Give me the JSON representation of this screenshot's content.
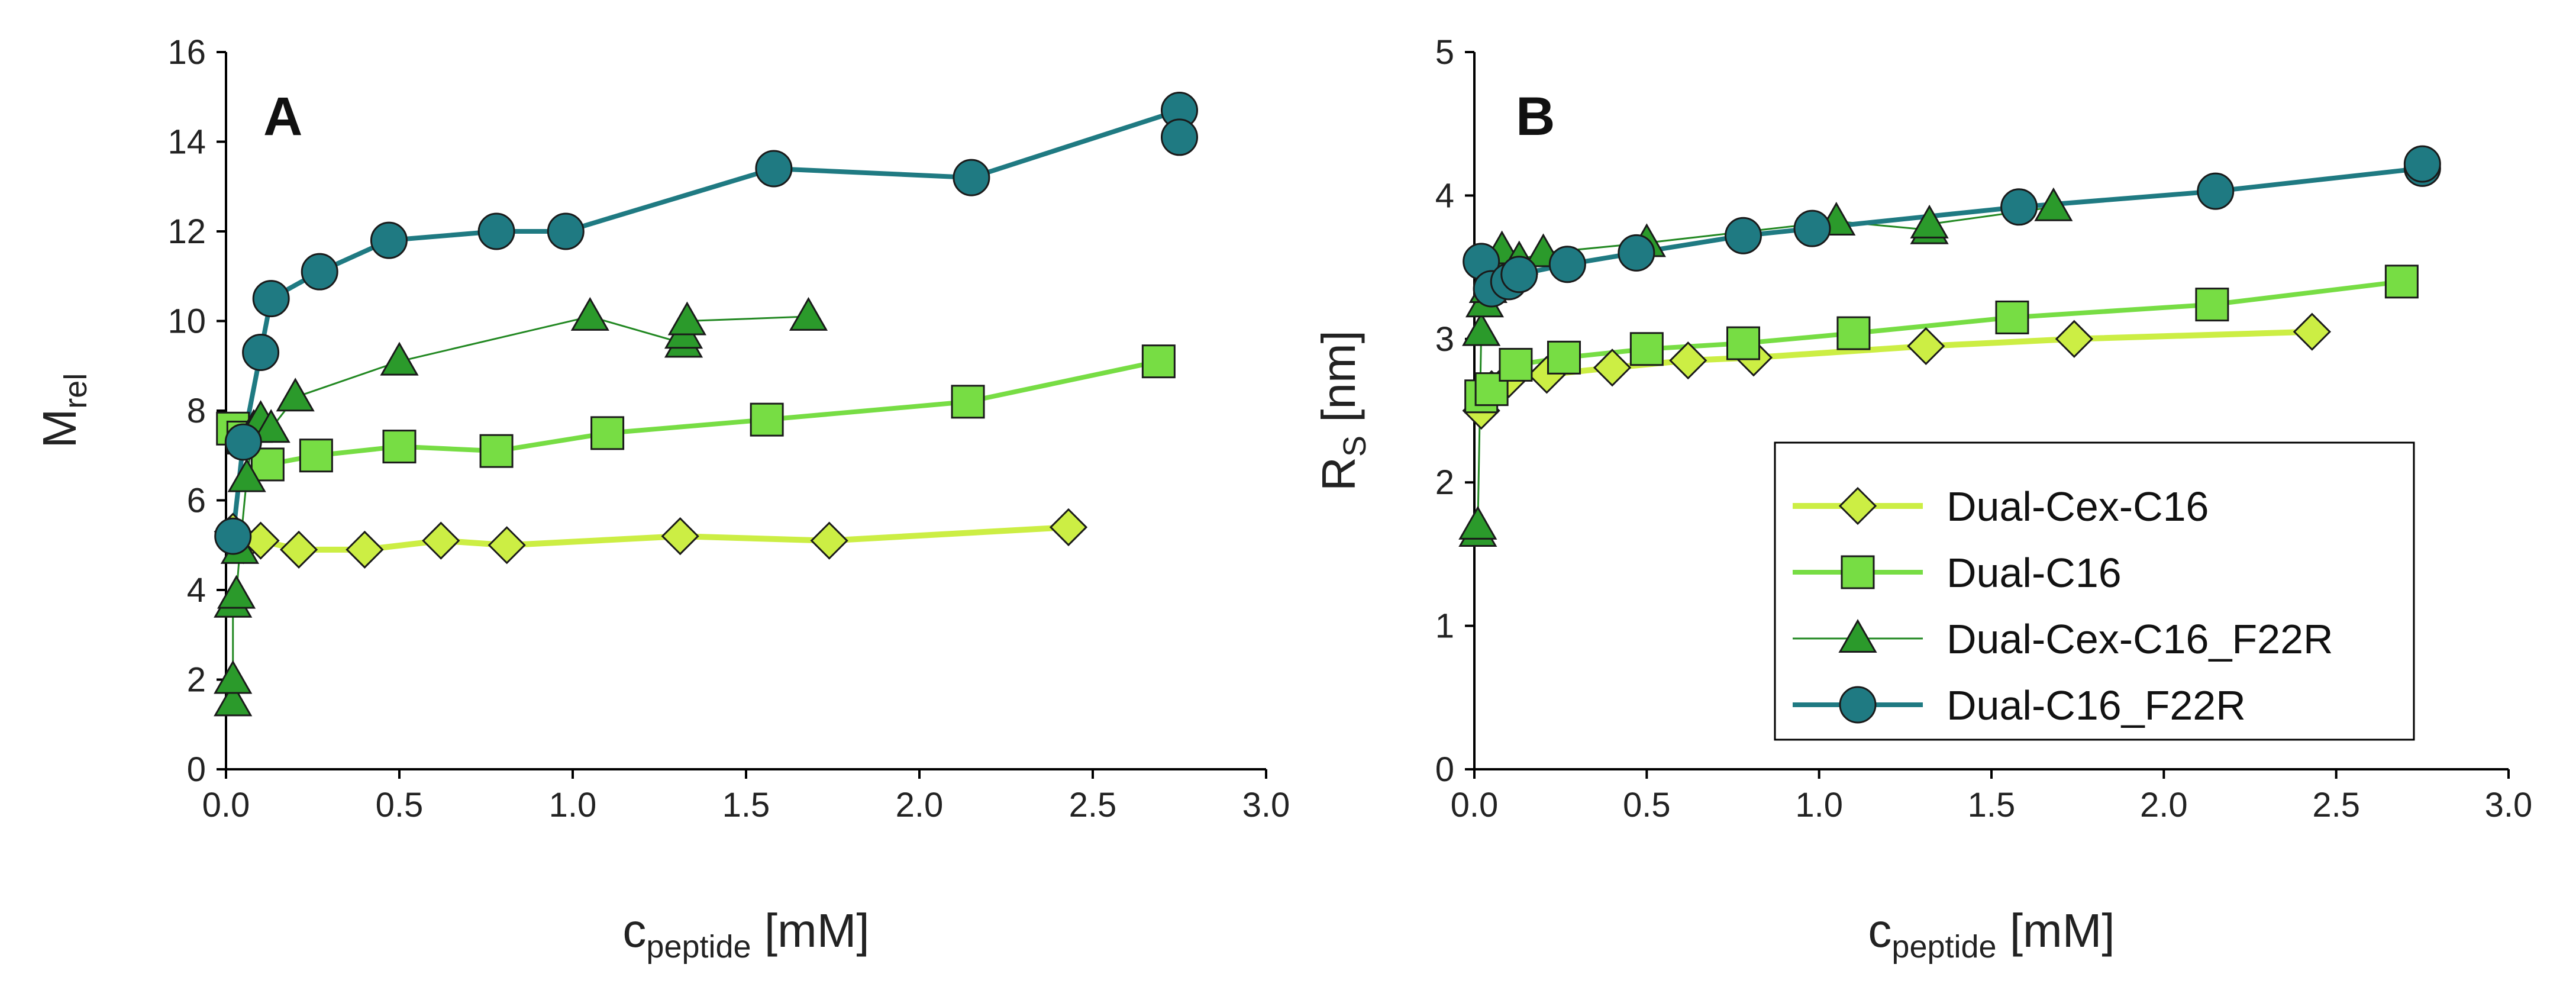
{
  "legend": {
    "items": [
      {
        "label": "Dual-Cex-C16",
        "series_index": 0
      },
      {
        "label": "Dual-C16",
        "series_index": 1
      },
      {
        "label": "Dual-Cex-C16_F22R",
        "series_index": 2
      },
      {
        "label": "Dual-C16_F22R",
        "series_index": 3
      }
    ],
    "placement": "lower-right of panel B"
  },
  "style": {
    "series": [
      {
        "name": "Dual-Cex-C16",
        "marker": "diamond",
        "line_color": "#ccee44",
        "fill": "#ccee44"
      },
      {
        "name": "Dual-C16",
        "marker": "square",
        "line_color": "#77dd44",
        "fill": "#77dd44"
      },
      {
        "name": "Dual-Cex-C16_F22R",
        "marker": "triangle",
        "line_color": "#228822",
        "fill": "#2b9a2b"
      },
      {
        "name": "Dual-C16_F22R",
        "marker": "circle",
        "line_color": "#1f7a82",
        "fill": "#1f7a82"
      }
    ]
  },
  "chart_data": [
    {
      "panel": "A",
      "type": "line",
      "title": "",
      "xlabel": "c",
      "xlabel_sub": "peptide",
      "xlabel_unit": " [mM]",
      "ylabel": "M",
      "ylabel_sub": "rel",
      "xlim": [
        0.0,
        3.0
      ],
      "ylim": [
        0,
        16
      ],
      "xticks": [
        "0.0",
        "0.5",
        "1.0",
        "1.5",
        "2.0",
        "2.5",
        "3.0"
      ],
      "yticks": [
        "0",
        "2",
        "4",
        "6",
        "8",
        "10",
        "12",
        "14",
        "16"
      ],
      "grid": false,
      "series": [
        {
          "name": "Dual-Cex-C16",
          "x": [
            0.02,
            0.05,
            0.1,
            0.21,
            0.4,
            0.62,
            0.81,
            1.31,
            1.74,
            2.43
          ],
          "y": [
            5.3,
            5.0,
            5.1,
            4.9,
            4.9,
            5.1,
            5.0,
            5.2,
            5.1,
            5.4
          ]
        },
        {
          "name": "Dual-C16",
          "x": [
            0.02,
            0.05,
            0.12,
            0.26,
            0.5,
            0.78,
            1.1,
            1.56,
            2.14,
            2.69
          ],
          "y": [
            7.6,
            7.4,
            6.8,
            7.0,
            7.2,
            7.1,
            7.5,
            7.8,
            8.2,
            9.1
          ]
        },
        {
          "name": "Dual-Cex-C16_F22R",
          "x": [
            0.02,
            0.02,
            0.02,
            0.03,
            0.04,
            0.06,
            0.08,
            0.1,
            0.13,
            0.2,
            0.5,
            1.05,
            1.32,
            1.32,
            1.33,
            1.68
          ],
          "y": [
            1.5,
            2.0,
            3.7,
            3.9,
            4.9,
            6.5,
            7.6,
            7.8,
            7.6,
            8.3,
            9.1,
            10.1,
            9.5,
            9.7,
            10.0,
            10.1
          ]
        },
        {
          "name": "Dual-C16_F22R",
          "x": [
            0.02,
            0.05,
            0.1,
            0.13,
            0.27,
            0.47,
            0.78,
            0.98,
            1.58,
            2.15,
            2.75,
            2.75
          ],
          "y": [
            5.2,
            7.3,
            9.3,
            10.5,
            11.1,
            11.8,
            12.0,
            12.0,
            13.4,
            13.2,
            14.7,
            14.1
          ]
        }
      ]
    },
    {
      "panel": "B",
      "type": "line",
      "title": "",
      "xlabel": "c",
      "xlabel_sub": "peptide",
      "xlabel_unit": " [mM]",
      "ylabel": "R",
      "ylabel_sub": "S",
      "ylabel_unit": " [nm]",
      "xlim": [
        0.0,
        3.0
      ],
      "ylim": [
        0,
        5
      ],
      "xticks": [
        "0.0",
        "0.5",
        "1.0",
        "1.5",
        "2.0",
        "2.5",
        "3.0"
      ],
      "yticks": [
        "0",
        "1",
        "2",
        "3",
        "4",
        "5"
      ],
      "grid": false,
      "series": [
        {
          "name": "Dual-Cex-C16",
          "x": [
            0.02,
            0.05,
            0.1,
            0.21,
            0.4,
            0.62,
            0.81,
            1.31,
            1.74,
            2.43
          ],
          "y": [
            2.5,
            2.65,
            2.72,
            2.75,
            2.8,
            2.85,
            2.87,
            2.95,
            3.0,
            3.05
          ]
        },
        {
          "name": "Dual-C16",
          "x": [
            0.02,
            0.05,
            0.12,
            0.26,
            0.5,
            0.78,
            1.1,
            1.56,
            2.14,
            2.69
          ],
          "y": [
            2.6,
            2.65,
            2.82,
            2.87,
            2.93,
            2.97,
            3.04,
            3.15,
            3.24,
            3.4
          ]
        },
        {
          "name": "Dual-Cex-C16_F22R",
          "x": [
            0.01,
            0.01,
            0.02,
            0.03,
            0.04,
            0.06,
            0.08,
            0.13,
            0.2,
            0.5,
            1.05,
            1.32,
            1.32,
            1.68
          ],
          "y": [
            1.65,
            1.7,
            3.05,
            3.25,
            3.35,
            3.5,
            3.62,
            3.55,
            3.6,
            3.67,
            3.82,
            3.76,
            3.8,
            3.92
          ]
        },
        {
          "name": "Dual-C16_F22R",
          "x": [
            0.02,
            0.05,
            0.1,
            0.13,
            0.27,
            0.47,
            0.78,
            0.98,
            1.58,
            2.15,
            2.75,
            2.75
          ],
          "y": [
            3.54,
            3.35,
            3.4,
            3.45,
            3.52,
            3.6,
            3.72,
            3.77,
            3.92,
            4.03,
            4.19,
            4.22
          ]
        }
      ]
    }
  ]
}
